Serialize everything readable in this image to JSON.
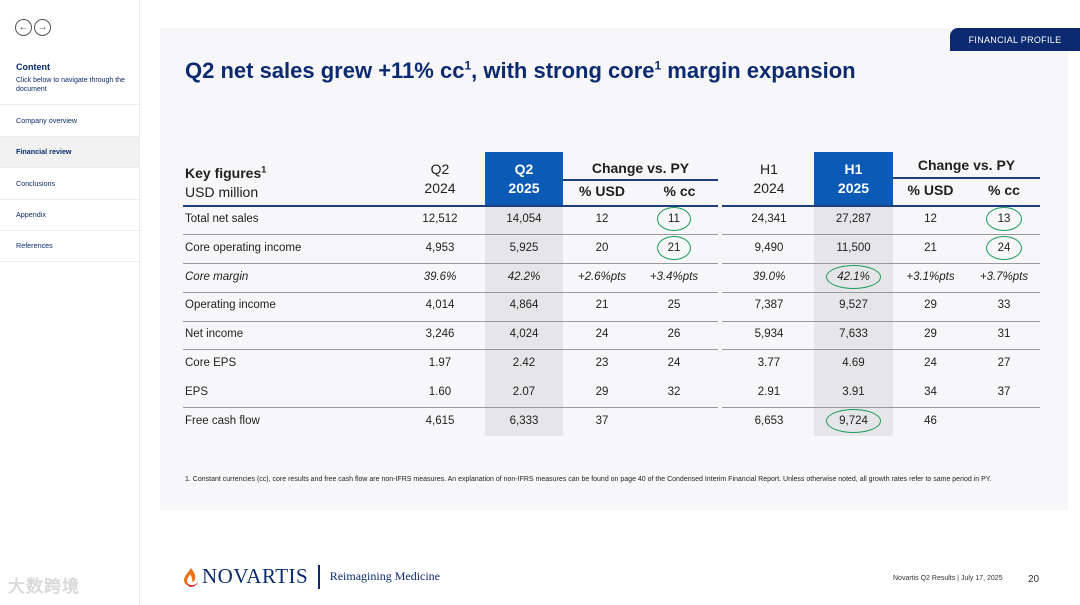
{
  "sidebar": {
    "content_title": "Content",
    "content_desc": "Click below to navigate through the document",
    "items": [
      {
        "label": "Company overview"
      },
      {
        "label": "Financial review"
      },
      {
        "label": "Conclusions"
      },
      {
        "label": "Appendix"
      },
      {
        "label": "References"
      }
    ],
    "active_index": 1
  },
  "tag": "FINANCIAL PROFILE",
  "title": {
    "part1": "Q2 net sales grew +11% cc",
    "sup1": "1",
    "part2": ", with strong core",
    "sup2": "1",
    "part3": " margin expansion"
  },
  "table": {
    "key_figures": "Key figures",
    "key_sup": "1",
    "unit": "USD million",
    "q2_2024_l1": "Q2",
    "q2_2024_l2": "2024",
    "q2_2025_l1": "Q2",
    "q2_2025_l2": "2025",
    "change_q": "Change vs. PY",
    "usd_q": "% USD",
    "cc_q": "% cc",
    "h1_2024_l1": "H1",
    "h1_2024_l2": "2024",
    "h1_2025_l1": "H1",
    "h1_2025_l2": "2025",
    "change_h": "Change vs. PY",
    "usd_h": "% USD",
    "cc_h": "% cc",
    "rows": [
      {
        "label": "Total net sales",
        "q24": "12,512",
        "q25": "14,054",
        "qusd": "12",
        "qcc": "11",
        "h24": "24,341",
        "h25": "27,287",
        "husd": "12",
        "hcc": "13"
      },
      {
        "label": "Core operating income",
        "q24": "4,953",
        "q25": "5,925",
        "qusd": "20",
        "qcc": "21",
        "h24": "9,490",
        "h25": "11,500",
        "husd": "21",
        "hcc": "24"
      },
      {
        "label": "Core margin",
        "q24": "39.6%",
        "q25": "42.2%",
        "qusd": "+2.6%pts",
        "qcc": "+3.4%pts",
        "h24": "39.0%",
        "h25": "42.1%",
        "husd": "+3.1%pts",
        "hcc": "+3.7%pts"
      },
      {
        "label": "Operating income",
        "q24": "4,014",
        "q25": "4,864",
        "qusd": "21",
        "qcc": "25",
        "h24": "7,387",
        "h25": "9,527",
        "husd": "29",
        "hcc": "33"
      },
      {
        "label": "Net income",
        "q24": "3,246",
        "q25": "4,024",
        "qusd": "24",
        "qcc": "26",
        "h24": "5,934",
        "h25": "7,633",
        "husd": "29",
        "hcc": "31"
      },
      {
        "label": "Core EPS",
        "q24": "1.97",
        "q25": "2.42",
        "qusd": "23",
        "qcc": "24",
        "h24": "3.77",
        "h25": "4.69",
        "husd": "24",
        "hcc": "27"
      },
      {
        "label": "EPS",
        "q24": "1.60",
        "q25": "2.07",
        "qusd": "29",
        "qcc": "32",
        "h24": "2.91",
        "h25": "3.91",
        "husd": "34",
        "hcc": "37"
      },
      {
        "label": "Free cash flow",
        "q24": "4,615",
        "q25": "6,333",
        "qusd": "37",
        "qcc": "",
        "h24": "6,653",
        "h25": "9,724",
        "husd": "46",
        "hcc": ""
      }
    ]
  },
  "footnote": "1. Constant currencies (cc), core results and free cash flow are non-IFRS measures. An explanation of non-IFRS measures can be found on page 40 of the Condensed Interim Financial Report. Unless otherwise noted, all growth rates refer to same period in PY.",
  "footer": {
    "brand": "NOVARTIS",
    "tagline": "Reimagining Medicine",
    "meta": "Novartis Q2 Results | July 17, 2025",
    "page": "20",
    "watermark": "大数跨境"
  },
  "colors": {
    "brand_navy": "#0b2a6f",
    "header_blue": "#0b5ab5",
    "highlight_circle": "#1b9a5a",
    "column_shade": "#e6e6e8"
  },
  "icons": [
    "back-arrow-icon",
    "forward-arrow-icon",
    "novartis-flame-icon"
  ]
}
